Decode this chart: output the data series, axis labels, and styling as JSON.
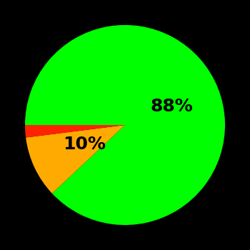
{
  "slices": [
    88,
    10,
    2
  ],
  "colors": [
    "#00ff00",
    "#ffaa00",
    "#ff2200"
  ],
  "labels": [
    "88%",
    "10%",
    ""
  ],
  "background_color": "#000000",
  "label_fontsize": 18,
  "label_fontweight": "bold",
  "startangle": 180,
  "counterclock": false,
  "figsize": [
    3.5,
    3.5
  ],
  "dpi": 100
}
